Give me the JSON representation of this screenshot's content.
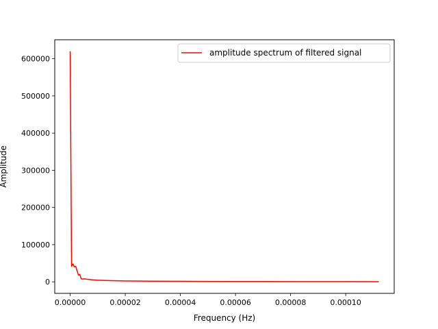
{
  "chart_data": {
    "type": "line",
    "title": "",
    "xlabel": "Frequency (Hz)",
    "ylabel": "Amplitude",
    "xlim": [
      -5.6e-06,
      0.0001176
    ],
    "ylim": [
      -31000,
      651000
    ],
    "x_ticks": [
      0,
      2e-05,
      4e-05,
      6e-05,
      8e-05,
      0.0001
    ],
    "x_tick_labels": [
      "0.00000",
      "0.00002",
      "0.00004",
      "0.00006",
      "0.00008",
      "0.00010"
    ],
    "y_ticks": [
      0,
      100000,
      200000,
      300000,
      400000,
      500000,
      600000
    ],
    "y_tick_labels": [
      "0",
      "100000",
      "200000",
      "300000",
      "400000",
      "500000",
      "600000"
    ],
    "grid": false,
    "legend_position": "top-right",
    "series": [
      {
        "name": "amplitude spectrum of filtered signal",
        "color": "#ff0000",
        "x": [
          0,
          5e-07,
          1e-06,
          1.5e-06,
          2e-06,
          2.5e-06,
          3e-06,
          3.5e-06,
          4e-06,
          4.5e-06,
          5e-06,
          5.5e-06,
          6e-06,
          8e-06,
          1e-05,
          1.5e-05,
          2e-05,
          3e-05,
          4e-05,
          5e-05,
          6e-05,
          7e-05,
          8e-05,
          9e-05,
          0.0001,
          0.000112
        ],
        "y": [
          620000,
          42000,
          48000,
          40000,
          42000,
          30000,
          18000,
          20000,
          8000,
          7500,
          8000,
          7800,
          7000,
          5500,
          4500,
          3200,
          2500,
          1800,
          1400,
          1100,
          900,
          750,
          650,
          550,
          500,
          450
        ]
      }
    ]
  }
}
